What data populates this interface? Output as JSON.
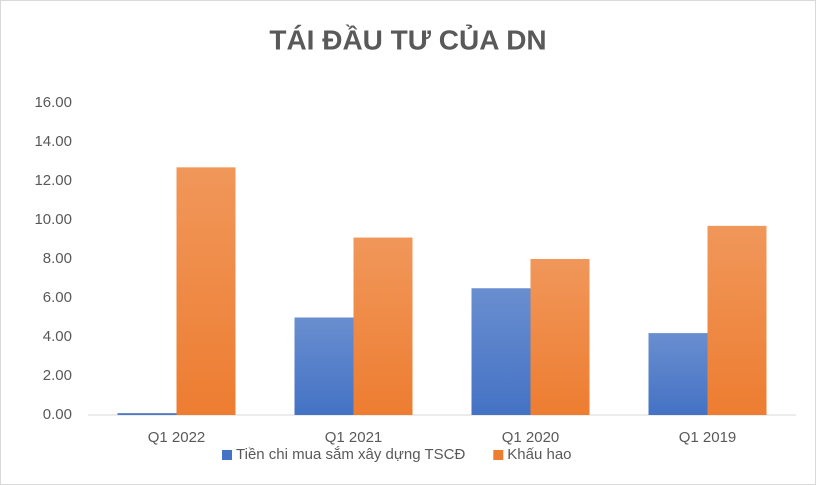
{
  "chart_data": {
    "type": "bar",
    "title": "TÁI ĐẦU TƯ CỦA DN",
    "categories": [
      "Q1 2022",
      "Q1 2021",
      "Q1 2020",
      "Q1 2019"
    ],
    "series": [
      {
        "name": "Tiền chi mua sắm xây dựng TSCĐ",
        "color": "#4472c4",
        "values": [
          0.1,
          5.0,
          6.5,
          4.2
        ]
      },
      {
        "name": "Khấu hao",
        "color": "#ed7d31",
        "values": [
          12.7,
          9.1,
          8.0,
          9.7
        ]
      }
    ],
    "ylim": [
      0,
      16
    ],
    "yticks": [
      {
        "value": 0,
        "label": "0.00"
      },
      {
        "value": 2,
        "label": "2.00"
      },
      {
        "value": 4,
        "label": "4.00"
      },
      {
        "value": 6,
        "label": "6.00"
      },
      {
        "value": 8,
        "label": "8.00"
      },
      {
        "value": 10,
        "label": "10.00"
      },
      {
        "value": 12,
        "label": "12.00"
      },
      {
        "value": 14,
        "label": "14.00"
      },
      {
        "value": 16,
        "label": "16.00"
      }
    ],
    "legend": "bottom"
  }
}
